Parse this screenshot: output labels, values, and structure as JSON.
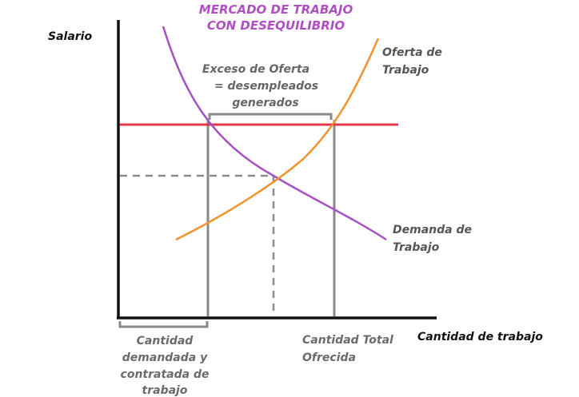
{
  "title": {
    "line1": "MERCADO DE TRABAJO",
    "line2": "CON DESEQUILIBRIO"
  },
  "axes": {
    "y_label": "Salario",
    "x_label": "Cantidad de trabajo"
  },
  "supply": {
    "line1": "Oferta de",
    "line2": "Trabajo"
  },
  "demand": {
    "line1": "Demanda de",
    "line2": "Trabajo"
  },
  "excess": {
    "line1": "Exceso de Oferta",
    "line2": "= desempleados",
    "line3": "generados"
  },
  "qty_demanded": {
    "line1": "Cantidad",
    "line2": "demandada y",
    "line3": "contratada de",
    "line4": "trabajo"
  },
  "qty_offered": {
    "line1": "Cantidad Total",
    "line2": "Ofrecida"
  },
  "colors": {
    "title": "#b04fc4",
    "demand_curve": "#a552c2",
    "supply_curve": "#f2922f",
    "wage_line": "#e8334e",
    "guide_lines": "#8a8a8a",
    "axes": "#111111"
  }
}
